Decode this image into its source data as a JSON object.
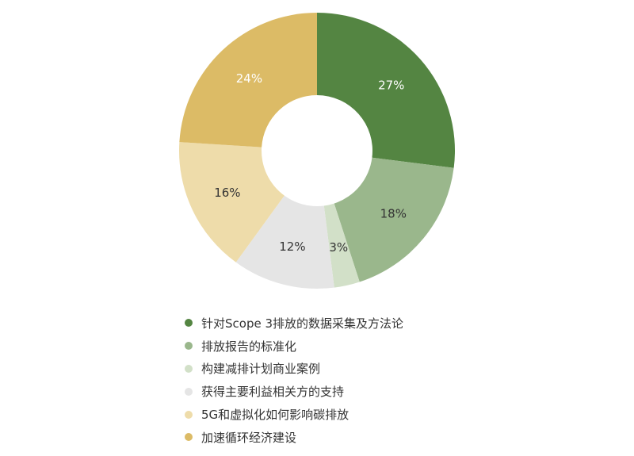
{
  "chart_data": {
    "type": "pie",
    "variant": "donut",
    "title": "",
    "legend_placement": "bottom",
    "categories": [
      "针对Scope 3排放的数据采集及方法论",
      "排放报告的标准化",
      "构建减排计划商业案例",
      "获得主要利益相关方的支持",
      "5G和虚拟化如何影响碳排放",
      "加速循环经济建设"
    ],
    "values": [
      27,
      18,
      3,
      12,
      16,
      24
    ],
    "value_labels": [
      "27%",
      "18%",
      "3%",
      "12%",
      "16%",
      "24%"
    ],
    "colors": [
      "#548542",
      "#9ab78c",
      "#d2e0c8",
      "#e5e5e5",
      "#eedcaa",
      "#dcbb66"
    ],
    "label_colors": [
      "#ffffff",
      "#333333",
      "#333333",
      "#333333",
      "#333333",
      "#ffffff"
    ]
  }
}
